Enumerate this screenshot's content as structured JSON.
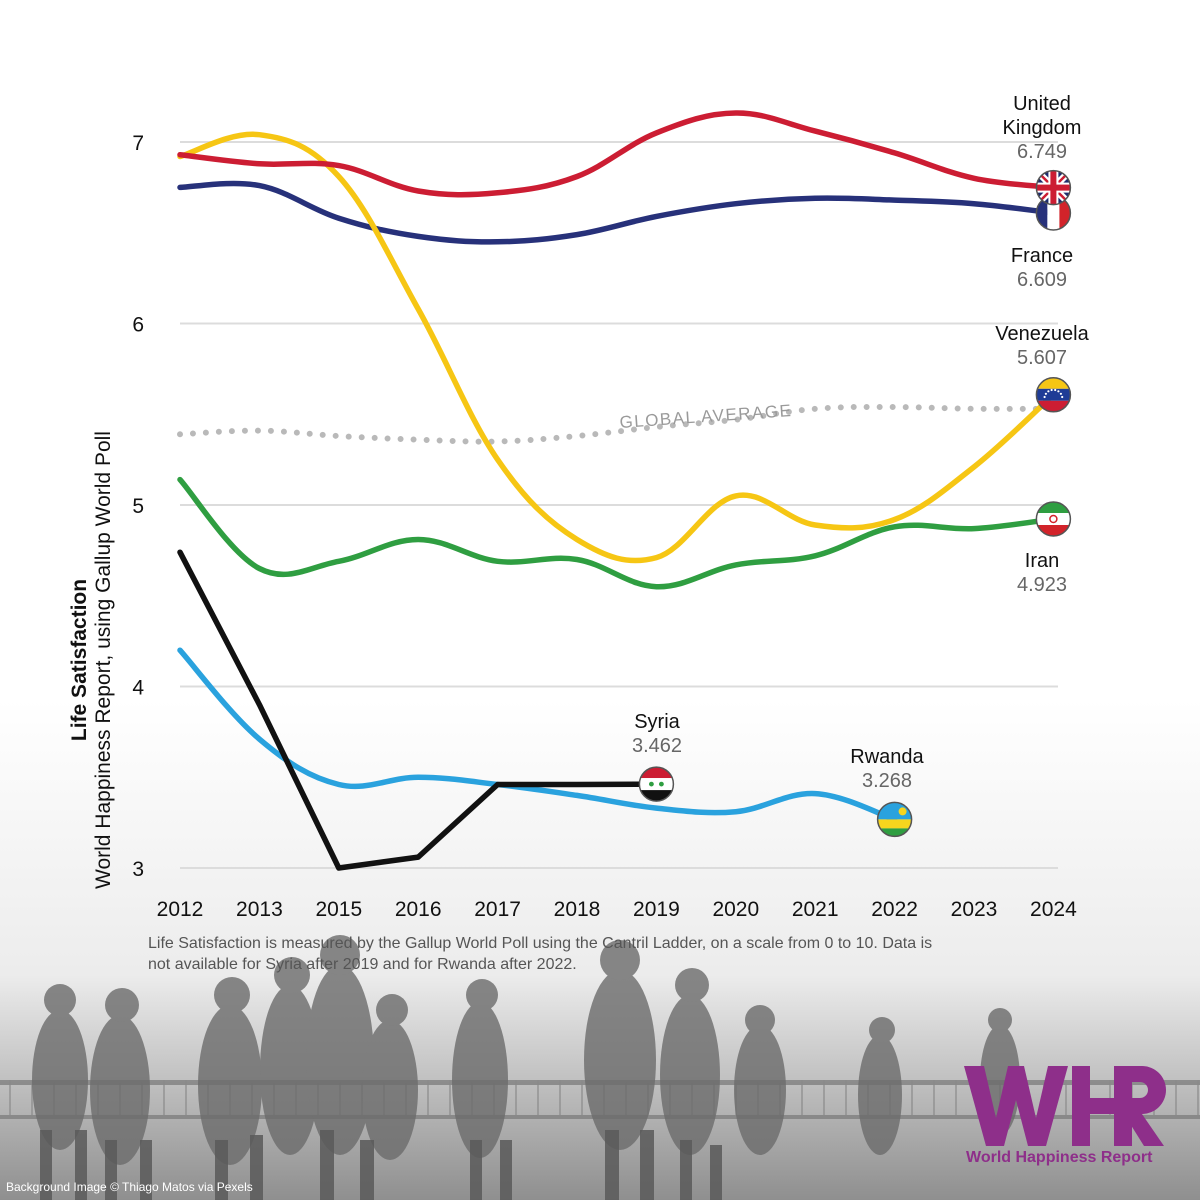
{
  "colors": {
    "united_kingdom": "#cc1d33",
    "france": "#27317a",
    "venezuela": "#f6c614",
    "iran": "#2f9e41",
    "syria": "#111111",
    "rwanda": "#2aa2de",
    "global_average": "#b9b9b9",
    "logo": "#8e2f8a"
  },
  "chart_data": {
    "type": "line",
    "title": "",
    "xlabel": "",
    "ylabel": "Life Satisfaction",
    "ylabel_sub": "World Happiness Report, using Gallup World Poll",
    "x": [
      "2012",
      "2013",
      "2015",
      "2016",
      "2017",
      "2018",
      "2019",
      "2020",
      "2021",
      "2022",
      "2023",
      "2024"
    ],
    "y_ticks": [
      3,
      4,
      5,
      6,
      7
    ],
    "ylim": [
      3,
      7
    ],
    "grid": true,
    "series": [
      {
        "name": "United Kingdom",
        "label_lines": [
          "United",
          "Kingdom"
        ],
        "value_label": "6.749",
        "color_key": "united_kingdom",
        "flag": "uk-flag",
        "values": [
          6.93,
          6.88,
          6.87,
          6.73,
          6.72,
          6.81,
          7.05,
          7.16,
          7.06,
          6.94,
          6.8,
          6.749
        ]
      },
      {
        "name": "France",
        "label_lines": [
          "France"
        ],
        "value_label": "6.609",
        "color_key": "france",
        "flag": "france-flag",
        "values": [
          6.75,
          6.76,
          6.58,
          6.48,
          6.45,
          6.49,
          6.59,
          6.66,
          6.69,
          6.68,
          6.66,
          6.609
        ]
      },
      {
        "name": "Venezuela",
        "label_lines": [
          "Venezuela"
        ],
        "value_label": "5.607",
        "color_key": "venezuela",
        "flag": "venezuela-flag",
        "values": [
          6.92,
          7.04,
          6.81,
          6.08,
          5.25,
          4.81,
          4.71,
          5.05,
          4.89,
          4.92,
          5.21,
          5.607
        ]
      },
      {
        "name": "Iran",
        "label_lines": [
          "Iran"
        ],
        "value_label": "4.923",
        "color_key": "iran",
        "flag": "iran-flag",
        "values": [
          5.14,
          4.65,
          4.69,
          4.81,
          4.69,
          4.7,
          4.55,
          4.67,
          4.72,
          4.88,
          4.87,
          4.923
        ]
      },
      {
        "name": "Syria",
        "label_lines": [
          "Syria"
        ],
        "value_label": "3.462",
        "color_key": "syria",
        "flag": "syria-flag",
        "values": [
          4.74,
          3.9,
          3.0,
          3.06,
          3.46,
          3.46,
          3.462,
          null,
          null,
          null,
          null,
          null
        ]
      },
      {
        "name": "Rwanda",
        "label_lines": [
          "Rwanda"
        ],
        "value_label": "3.268",
        "color_key": "rwanda",
        "flag": "rwanda-flag",
        "values": [
          4.2,
          3.71,
          3.46,
          3.5,
          3.46,
          3.4,
          3.33,
          3.31,
          3.41,
          3.268,
          null,
          null
        ]
      }
    ],
    "global_average": {
      "label": "GLOBAL AVERAGE",
      "values": [
        5.39,
        5.41,
        5.38,
        5.36,
        5.35,
        5.38,
        5.43,
        5.47,
        5.53,
        5.54,
        5.53,
        5.53
      ]
    }
  },
  "footnote": "Life Satisfaction is measured by the Gallup World Poll using the Cantril Ladder, on a scale from 0 to 10. Data is not available for Syria after 2019 and for Rwanda after 2022.",
  "credit": "Background Image © Thiago Matos via Pexels",
  "logo": {
    "letters": "WHR",
    "caption": "World Happiness Report"
  }
}
